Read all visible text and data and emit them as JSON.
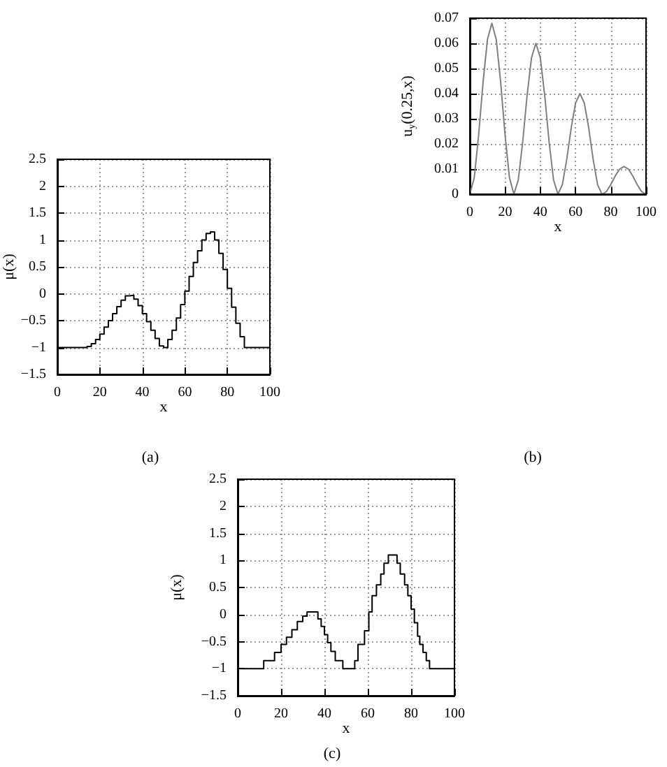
{
  "chart_data": [
    {
      "type": "step",
      "xlabel": "x",
      "ylabel": "μ(x)",
      "annotations": [
        "(a)"
      ],
      "xlim": [
        0,
        100
      ],
      "ylim": [
        -1.5,
        2.5
      ],
      "xticks": [
        0,
        20,
        40,
        60,
        80,
        100
      ],
      "yticks": [
        -1.5,
        -1,
        -0.5,
        0,
        0.5,
        1,
        1.5,
        2,
        2.5
      ],
      "grid": true,
      "series": [
        {
          "color": "#000000",
          "x": [
            0,
            12,
            14,
            16,
            18,
            20,
            22,
            24,
            26,
            28,
            30,
            32,
            34,
            36,
            38,
            40,
            42,
            44,
            46,
            48,
            50,
            52,
            54,
            56,
            58,
            60,
            62,
            64,
            66,
            68,
            70,
            72,
            74,
            76,
            78,
            80,
            82,
            84,
            86,
            88,
            100
          ],
          "values": [
            -1,
            -1,
            -0.98,
            -0.93,
            -0.85,
            -0.75,
            -0.62,
            -0.5,
            -0.37,
            -0.24,
            -0.12,
            -0.04,
            -0.03,
            -0.1,
            -0.22,
            -0.37,
            -0.52,
            -0.68,
            -0.83,
            -0.97,
            -1,
            -0.85,
            -0.68,
            -0.45,
            -0.2,
            0.05,
            0.32,
            0.58,
            0.8,
            1.0,
            1.12,
            1.15,
            1.0,
            0.75,
            0.45,
            0.1,
            -0.25,
            -0.55,
            -0.8,
            -1,
            -1
          ]
        }
      ]
    },
    {
      "type": "line",
      "xlabel": "x",
      "ylabel": "u$_{y}$(0.25,x)",
      "annotations": [
        "(b)"
      ],
      "xlim": [
        0,
        100
      ],
      "ylim": [
        0,
        0.07
      ],
      "xticks": [
        0,
        20,
        40,
        60,
        80,
        100
      ],
      "yticks": [
        0,
        0.01,
        0.02,
        0.03,
        0.04,
        0.05,
        0.06,
        0.07
      ],
      "grid": true,
      "series": [
        {
          "color": "#808080",
          "x": [
            0,
            2.5,
            5,
            7.5,
            10,
            12.5,
            15,
            17.5,
            20,
            22.5,
            25,
            27.5,
            30,
            32.5,
            35,
            37.5,
            40,
            42.5,
            45,
            47.5,
            50,
            52.5,
            55,
            57.5,
            60,
            62.5,
            65,
            67.5,
            70,
            72.5,
            75,
            77.5,
            80,
            82.5,
            85,
            87.5,
            90,
            92.5,
            95,
            97.5,
            100
          ],
          "values": [
            0,
            0.0065,
            0.0235,
            0.0445,
            0.0615,
            0.068,
            0.0615,
            0.0445,
            0.0235,
            0.0065,
            0,
            0.0057,
            0.0207,
            0.0393,
            0.0543,
            0.06,
            0.0543,
            0.0393,
            0.0207,
            0.0057,
            0,
            0.0038,
            0.0138,
            0.0262,
            0.0362,
            0.04,
            0.0362,
            0.0262,
            0.0138,
            0.0038,
            0,
            0.001,
            0.0038,
            0.0072,
            0.01,
            0.011,
            0.01,
            0.0072,
            0.0038,
            0.001,
            0
          ]
        }
      ]
    },
    {
      "type": "step",
      "xlabel": "x",
      "ylabel": "μ(x)",
      "annotations": [
        "(c)"
      ],
      "xlim": [
        0,
        100
      ],
      "ylim": [
        -1.5,
        2.5
      ],
      "xticks": [
        0,
        20,
        40,
        60,
        80,
        100
      ],
      "yticks": [
        -1.5,
        -1,
        -0.5,
        0,
        0.5,
        1,
        1.5,
        2,
        2.5
      ],
      "grid": true,
      "series": [
        {
          "color": "#000000",
          "x": [
            0,
            12,
            17,
            20,
            22.5,
            25,
            27.5,
            30,
            32,
            37,
            38.5,
            40,
            41.5,
            43,
            45,
            48.5,
            54,
            55.5,
            58.5,
            60.5,
            62,
            64,
            66,
            67.5,
            69.5,
            73.5,
            75,
            77,
            78.5,
            80,
            81.5,
            83,
            84,
            85.5,
            87,
            88.5,
            100
          ],
          "values": [
            -1,
            -0.85,
            -0.7,
            -0.55,
            -0.42,
            -0.28,
            -0.13,
            -0.03,
            0.05,
            -0.08,
            -0.22,
            -0.37,
            -0.52,
            -0.68,
            -0.85,
            -1,
            -0.85,
            -0.55,
            -0.3,
            0.05,
            0.35,
            0.55,
            0.75,
            0.95,
            1.1,
            0.95,
            0.75,
            0.55,
            0.35,
            0.1,
            -0.15,
            -0.4,
            -0.55,
            -0.7,
            -0.85,
            -1,
            -1
          ]
        }
      ]
    }
  ]
}
